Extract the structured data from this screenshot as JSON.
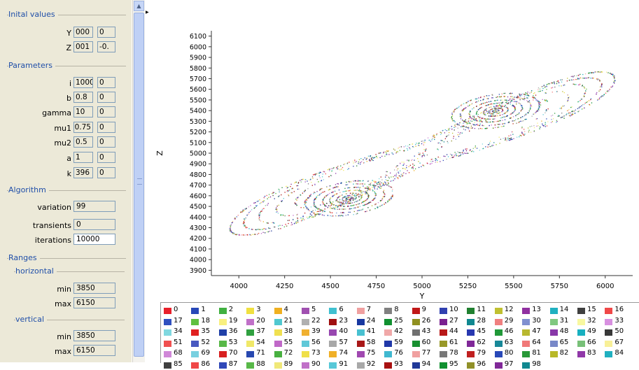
{
  "panel": {
    "initial_values": {
      "title": "Inital values",
      "rows": [
        {
          "name": "Y",
          "value": "000",
          "variation": "0"
        },
        {
          "name": "Z",
          "value": "001",
          "variation": "-0."
        }
      ]
    },
    "parameters": {
      "title": "Parameters",
      "rows": [
        {
          "name": "i",
          "value": "1000",
          "variation": "0"
        },
        {
          "name": "b",
          "value": "0.8",
          "variation": "0"
        },
        {
          "name": "gamma",
          "value": "10",
          "variation": "0"
        },
        {
          "name": "mu1",
          "value": "0.75",
          "variation": "0"
        },
        {
          "name": "mu2",
          "value": "0.5",
          "variation": "0"
        },
        {
          "name": "a",
          "value": "1",
          "variation": "0"
        },
        {
          "name": "k",
          "value": "396",
          "variation": "0"
        }
      ]
    },
    "algorithm": {
      "title": "Algorithm",
      "rows": [
        {
          "name": "variation",
          "value": "99"
        },
        {
          "name": "transients",
          "value": "0"
        },
        {
          "name": "iterations",
          "value": "10000"
        }
      ]
    },
    "ranges": {
      "title": "Ranges",
      "horizontal": {
        "title": "horizontal",
        "min_label": "min",
        "min": "3850",
        "max_label": "max",
        "max": "6150"
      },
      "vertical": {
        "title": "vertical",
        "min_label": "min",
        "min": "3850",
        "max_label": "max",
        "max": "6150"
      }
    }
  },
  "scrollbar": {
    "up_arrow": "▲"
  },
  "chart_data": {
    "type": "scatter",
    "xlabel": "Y",
    "ylabel": "Z",
    "xlim": [
      3850,
      6150
    ],
    "ylim": [
      3850,
      6150
    ],
    "xticks": [
      4000,
      4250,
      4500,
      4750,
      5000,
      5250,
      5500,
      5750,
      6000
    ],
    "yticks": [
      3900,
      4000,
      4100,
      4200,
      4300,
      4400,
      4500,
      4600,
      4700,
      4800,
      4900,
      5000,
      5100,
      5200,
      5300,
      5400,
      5500,
      5600,
      5700,
      5800,
      5900,
      6000,
      6100
    ],
    "grid": false,
    "legend_placement": "bottom",
    "attractor": {
      "left_focus": [
        4600,
        4580
      ],
      "right_focus": [
        5400,
        5400
      ],
      "outer_orbit_x_range": [
        3920,
        6020
      ],
      "outer_orbit_y_range": [
        3960,
        6040
      ]
    },
    "series": [
      {
        "name": "0",
        "color": "#e8202a"
      },
      {
        "name": "1",
        "color": "#2848b8"
      },
      {
        "name": "2",
        "color": "#40b040"
      },
      {
        "name": "3",
        "color": "#f0e040"
      },
      {
        "name": "4",
        "color": "#f0b020"
      },
      {
        "name": "5",
        "color": "#a050b0"
      },
      {
        "name": "6",
        "color": "#40c0d0"
      },
      {
        "name": "7",
        "color": "#f0a0a0"
      },
      {
        "name": "8",
        "color": "#808080"
      },
      {
        "name": "9",
        "color": "#c01818"
      },
      {
        "name": "10",
        "color": "#3040b0"
      },
      {
        "name": "11",
        "color": "#208030"
      },
      {
        "name": "12",
        "color": "#c0c030"
      },
      {
        "name": "13",
        "color": "#9030a0"
      },
      {
        "name": "14",
        "color": "#20b0c0"
      },
      {
        "name": "15",
        "color": "#404040"
      },
      {
        "name": "16",
        "color": "#f04848"
      },
      {
        "name": "17",
        "color": "#3050c0"
      },
      {
        "name": "18",
        "color": "#60c040"
      },
      {
        "name": "19",
        "color": "#f8f080"
      },
      {
        "name": "20",
        "color": "#c070c8"
      },
      {
        "name": "21",
        "color": "#50c8d0"
      },
      {
        "name": "22",
        "color": "#b0b0b0"
      },
      {
        "name": "23",
        "color": "#a01010"
      },
      {
        "name": "24",
        "color": "#1838a0"
      },
      {
        "name": "25",
        "color": "#109030"
      },
      {
        "name": "26",
        "color": "#909020"
      },
      {
        "name": "27",
        "color": "#7a2090"
      },
      {
        "name": "28",
        "color": "#108890"
      },
      {
        "name": "29",
        "color": "#f08080"
      },
      {
        "name": "30",
        "color": "#8090d0"
      },
      {
        "name": "31",
        "color": "#80c880"
      },
      {
        "name": "32",
        "color": "#f8f8a0"
      },
      {
        "name": "33",
        "color": "#d890e0"
      },
      {
        "name": "34",
        "color": "#80d8e0"
      },
      {
        "name": "35",
        "color": "#e02020"
      },
      {
        "name": "36",
        "color": "#2040a8"
      },
      {
        "name": "37",
        "color": "#30a040"
      },
      {
        "name": "38",
        "color": "#f0e050"
      },
      {
        "name": "39",
        "color": "#f0b030"
      },
      {
        "name": "40",
        "color": "#9848b0"
      },
      {
        "name": "41",
        "color": "#48c0d0"
      },
      {
        "name": "42",
        "color": "#f0a8a8"
      },
      {
        "name": "43",
        "color": "#707070"
      },
      {
        "name": "44",
        "color": "#b81818"
      },
      {
        "name": "45",
        "color": "#2838b0"
      },
      {
        "name": "46",
        "color": "#209838"
      },
      {
        "name": "47",
        "color": "#b8b830"
      },
      {
        "name": "48",
        "color": "#8838a8"
      },
      {
        "name": "49",
        "color": "#18b0c0"
      },
      {
        "name": "50",
        "color": "#383838"
      },
      {
        "name": "51",
        "color": "#f05050"
      },
      {
        "name": "52",
        "color": "#4858c0"
      },
      {
        "name": "53",
        "color": "#58b848"
      },
      {
        "name": "54",
        "color": "#f0e868"
      },
      {
        "name": "55",
        "color": "#c068c8"
      },
      {
        "name": "56",
        "color": "#60c8d8"
      },
      {
        "name": "57",
        "color": "#a8a8a8"
      },
      {
        "name": "58",
        "color": "#a81818"
      },
      {
        "name": "59",
        "color": "#2038a8"
      },
      {
        "name": "60",
        "color": "#189030"
      },
      {
        "name": "61",
        "color": "#989828"
      },
      {
        "name": "62",
        "color": "#802898"
      },
      {
        "name": "63",
        "color": "#188898"
      },
      {
        "name": "64",
        "color": "#f07878"
      },
      {
        "name": "65",
        "color": "#7888c8"
      },
      {
        "name": "66",
        "color": "#78c078"
      },
      {
        "name": "67",
        "color": "#f8f098"
      },
      {
        "name": "68",
        "color": "#d088d8"
      },
      {
        "name": "69",
        "color": "#78d0e0"
      },
      {
        "name": "70",
        "color": "#d82020"
      },
      {
        "name": "71",
        "color": "#2848b0"
      },
      {
        "name": "72",
        "color": "#48b040"
      },
      {
        "name": "73",
        "color": "#f0e048"
      },
      {
        "name": "74",
        "color": "#f0b028"
      },
      {
        "name": "75",
        "color": "#a048b0"
      },
      {
        "name": "76",
        "color": "#40b8d0"
      },
      {
        "name": "77",
        "color": "#f0a0a0"
      },
      {
        "name": "78",
        "color": "#787878"
      },
      {
        "name": "79",
        "color": "#c02020"
      },
      {
        "name": "80",
        "color": "#2848b8"
      },
      {
        "name": "81",
        "color": "#289838"
      },
      {
        "name": "82",
        "color": "#b8b828"
      },
      {
        "name": "83",
        "color": "#9038a8"
      },
      {
        "name": "84",
        "color": "#20b0c0"
      },
      {
        "name": "85",
        "color": "#404040"
      },
      {
        "name": "86",
        "color": "#f04848"
      },
      {
        "name": "87",
        "color": "#3048b8"
      },
      {
        "name": "88",
        "color": "#58b848"
      },
      {
        "name": "89",
        "color": "#f0e878"
      },
      {
        "name": "90",
        "color": "#c070c8"
      },
      {
        "name": "91",
        "color": "#58c8d8"
      },
      {
        "name": "92",
        "color": "#a8a8a8"
      },
      {
        "name": "93",
        "color": "#a81010"
      },
      {
        "name": "94",
        "color": "#203898"
      },
      {
        "name": "95",
        "color": "#109030"
      },
      {
        "name": "96",
        "color": "#909028"
      },
      {
        "name": "97",
        "color": "#802898"
      },
      {
        "name": "98",
        "color": "#108890"
      }
    ]
  }
}
